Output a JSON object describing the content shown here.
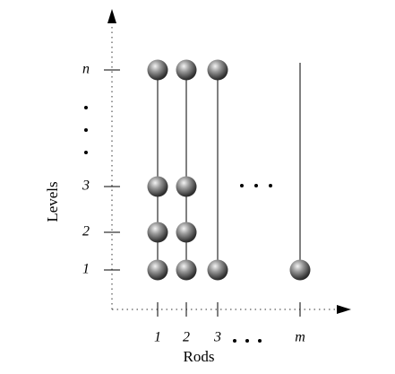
{
  "axes": {
    "y_label": "Levels",
    "x_label": "Rods"
  },
  "levels": [
    "1",
    "2",
    "3",
    "n"
  ],
  "rods": [
    "1",
    "2",
    "3",
    "m"
  ]
}
